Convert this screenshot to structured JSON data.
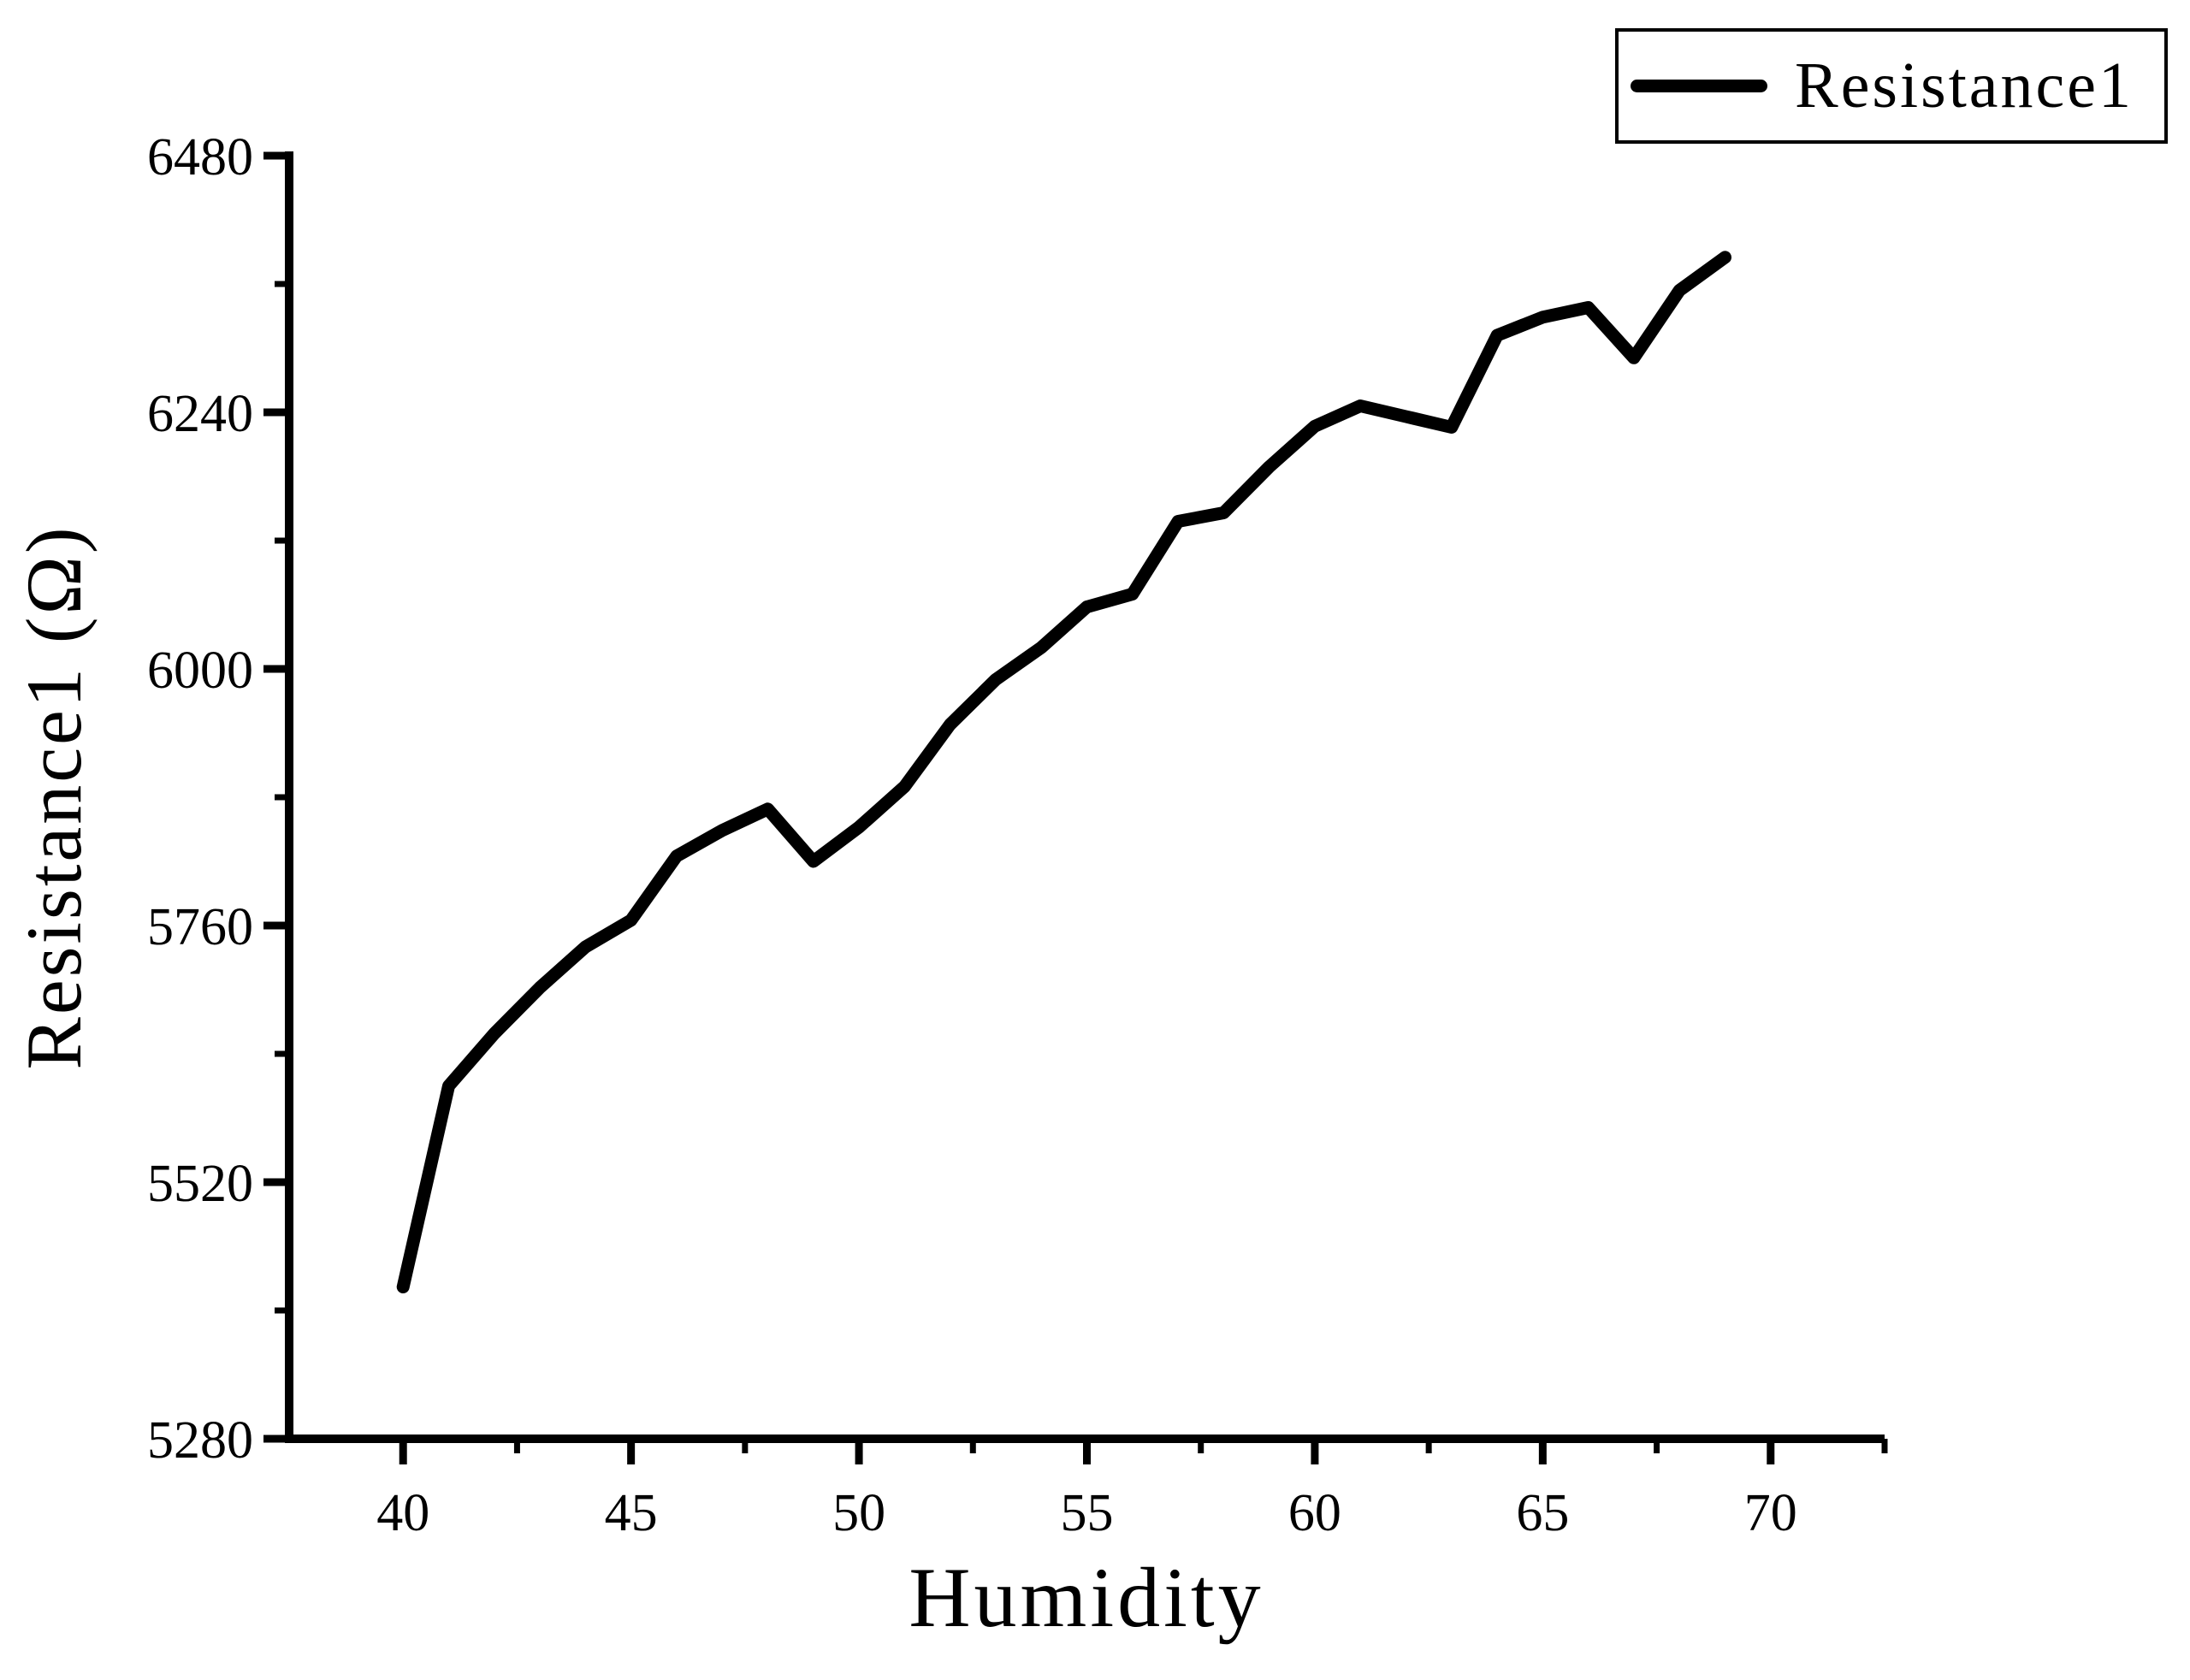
{
  "figure": {
    "background_color": "#ffffff",
    "foreground_color": "#000000"
  },
  "legend": {
    "label": "Resistance1"
  },
  "axes": {
    "x_title": "Humidity",
    "y_title": "Resistance1 (Ω)"
  },
  "chart_data": {
    "type": "line",
    "title": "",
    "xlabel": "Humidity",
    "ylabel": "Resistance1 (Ω)",
    "grid": false,
    "legend_position": "top-right",
    "legend_entries": [
      "Resistance1"
    ],
    "xlim": [
      37.5,
      72.5
    ],
    "ylim": [
      5280,
      6480
    ],
    "x_major_ticks": [
      40,
      45,
      50,
      55,
      60,
      65,
      70
    ],
    "x_minor_ticks": [
      42.5,
      47.5,
      52.5,
      57.5,
      62.5,
      67.5,
      72.5
    ],
    "y_major_ticks": [
      5280,
      5520,
      5760,
      6000,
      6240,
      6480
    ],
    "y_minor_ticks": [
      5400,
      5640,
      5880,
      6120,
      6360
    ],
    "series": [
      {
        "name": "Resistance1",
        "color": "#000000",
        "x": [
          40,
          41,
          42,
          43,
          44,
          45,
          46,
          47,
          48,
          49,
          50,
          51,
          52,
          53,
          54,
          55,
          56,
          57,
          58,
          59,
          60,
          61,
          62,
          63,
          64,
          65,
          66,
          67,
          68,
          69
        ],
        "y": [
          5422,
          5610,
          5659,
          5702,
          5740,
          5765,
          5825,
          5849,
          5869,
          5820,
          5852,
          5890,
          5948,
          5990,
          6020,
          6058,
          6070,
          6138,
          6146,
          6189,
          6227,
          6246,
          6236,
          6226,
          6312,
          6329,
          6338,
          6291,
          6354,
          6385
        ]
      }
    ]
  }
}
